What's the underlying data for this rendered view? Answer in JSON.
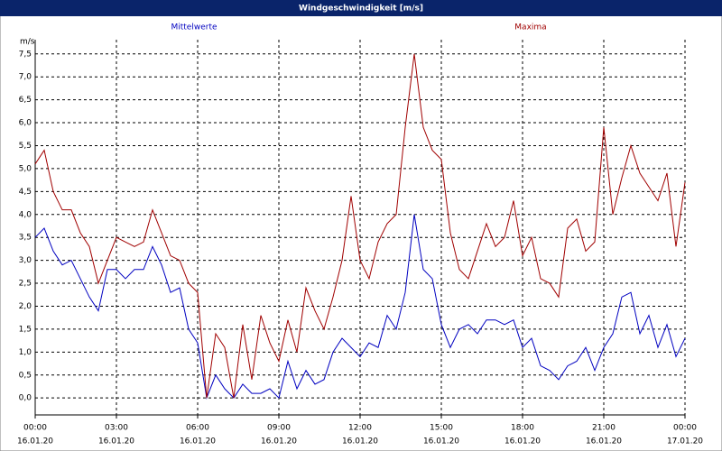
{
  "chart_data": {
    "type": "line",
    "title": "Windgeschwindigkeit [m/s]",
    "ylabel": "m/s",
    "x": [
      0,
      20,
      40,
      60,
      80,
      100,
      120,
      140,
      160,
      180,
      200,
      220,
      240,
      260,
      280,
      300,
      320,
      340,
      360,
      380,
      400,
      420,
      440,
      460,
      480,
      500,
      520,
      540,
      560,
      580,
      600,
      620,
      640,
      660,
      680,
      700,
      720,
      740,
      760,
      780,
      800,
      820,
      840,
      860,
      880,
      900,
      920,
      940,
      960,
      980,
      1000,
      1020,
      1040,
      1060,
      1080,
      1100,
      1120,
      1140,
      1160,
      1180,
      1200,
      1220,
      1240,
      1260,
      1280,
      1300,
      1320,
      1340,
      1360,
      1380,
      1400,
      1420,
      1440
    ],
    "series": [
      {
        "name": "Mittelwerte",
        "color": "#0000c0",
        "values": [
          3.5,
          3.7,
          3.2,
          2.9,
          3.0,
          2.6,
          2.2,
          1.9,
          2.8,
          2.8,
          2.6,
          2.8,
          2.8,
          3.3,
          2.9,
          2.3,
          2.4,
          1.5,
          1.2,
          0.0,
          0.5,
          0.2,
          0.0,
          0.3,
          0.1,
          0.1,
          0.2,
          0.0,
          0.8,
          0.2,
          0.6,
          0.3,
          0.4,
          1.0,
          1.3,
          1.1,
          0.9,
          1.2,
          1.1,
          1.8,
          1.5,
          2.3,
          4.0,
          2.8,
          2.6,
          1.6,
          1.1,
          1.5,
          1.6,
          1.4,
          1.7,
          1.7,
          1.6,
          1.7,
          1.1,
          1.3,
          0.7,
          0.6,
          0.4,
          0.7,
          0.8,
          1.1,
          0.6,
          1.1,
          1.4,
          2.2,
          2.3,
          1.4,
          1.8,
          1.1,
          1.6,
          0.9,
          1.3
        ]
      },
      {
        "name": "Maxima",
        "color": "#a00000",
        "values": [
          5.1,
          5.4,
          4.5,
          4.1,
          4.1,
          3.6,
          3.3,
          2.5,
          3.0,
          3.5,
          3.4,
          3.3,
          3.4,
          4.1,
          3.6,
          3.1,
          3.0,
          2.5,
          2.3,
          0.0,
          1.4,
          1.1,
          0.0,
          1.6,
          0.4,
          1.8,
          1.2,
          0.8,
          1.7,
          1.0,
          2.4,
          1.9,
          1.5,
          2.2,
          3.0,
          4.4,
          3.0,
          2.6,
          3.4,
          3.8,
          4.0,
          5.9,
          7.5,
          5.9,
          5.4,
          5.2,
          3.6,
          2.8,
          2.6,
          3.2,
          3.8,
          3.3,
          3.5,
          4.3,
          3.1,
          3.5,
          2.6,
          2.5,
          2.2,
          3.7,
          3.9,
          3.2,
          3.4,
          5.9,
          4.0,
          4.8,
          5.5,
          4.9,
          4.6,
          4.3,
          4.9,
          3.3,
          4.7
        ]
      }
    ],
    "xlim": [
      0,
      1440
    ],
    "xticks": [
      {
        "value": 0,
        "label": "00:00",
        "date": "16.01.20"
      },
      {
        "value": 180,
        "label": "03:00",
        "date": "16.01.20"
      },
      {
        "value": 360,
        "label": "06:00",
        "date": "16.01.20"
      },
      {
        "value": 540,
        "label": "09:00",
        "date": "16.01.20"
      },
      {
        "value": 720,
        "label": "12:00",
        "date": "16.01.20"
      },
      {
        "value": 900,
        "label": "15:00",
        "date": "16.01.20"
      },
      {
        "value": 1080,
        "label": "18:00",
        "date": "16.01.20"
      },
      {
        "value": 1260,
        "label": "21:00",
        "date": "16.01.20"
      },
      {
        "value": 1440,
        "label": "00:00",
        "date": "17.01.20"
      }
    ],
    "ylim": [
      -0.37,
      7.81
    ],
    "yticks": [
      {
        "value": 0,
        "label": "0,0"
      },
      {
        "value": 0.5,
        "label": "0,5"
      },
      {
        "value": 1,
        "label": "1,0"
      },
      {
        "value": 1.5,
        "label": "1,5"
      },
      {
        "value": 2,
        "label": "2,0"
      },
      {
        "value": 2.5,
        "label": "2,5"
      },
      {
        "value": 3,
        "label": "3,0"
      },
      {
        "value": 3.5,
        "label": "3,5"
      },
      {
        "value": 4,
        "label": "4,0"
      },
      {
        "value": 4.5,
        "label": "4,5"
      },
      {
        "value": 5,
        "label": "5,0"
      },
      {
        "value": 5.5,
        "label": "5,5"
      },
      {
        "value": 6,
        "label": "6,0"
      },
      {
        "value": 6.5,
        "label": "6,5"
      },
      {
        "value": 7,
        "label": "7,0"
      },
      {
        "value": 7.5,
        "label": "7,5"
      }
    ],
    "grid": true
  }
}
